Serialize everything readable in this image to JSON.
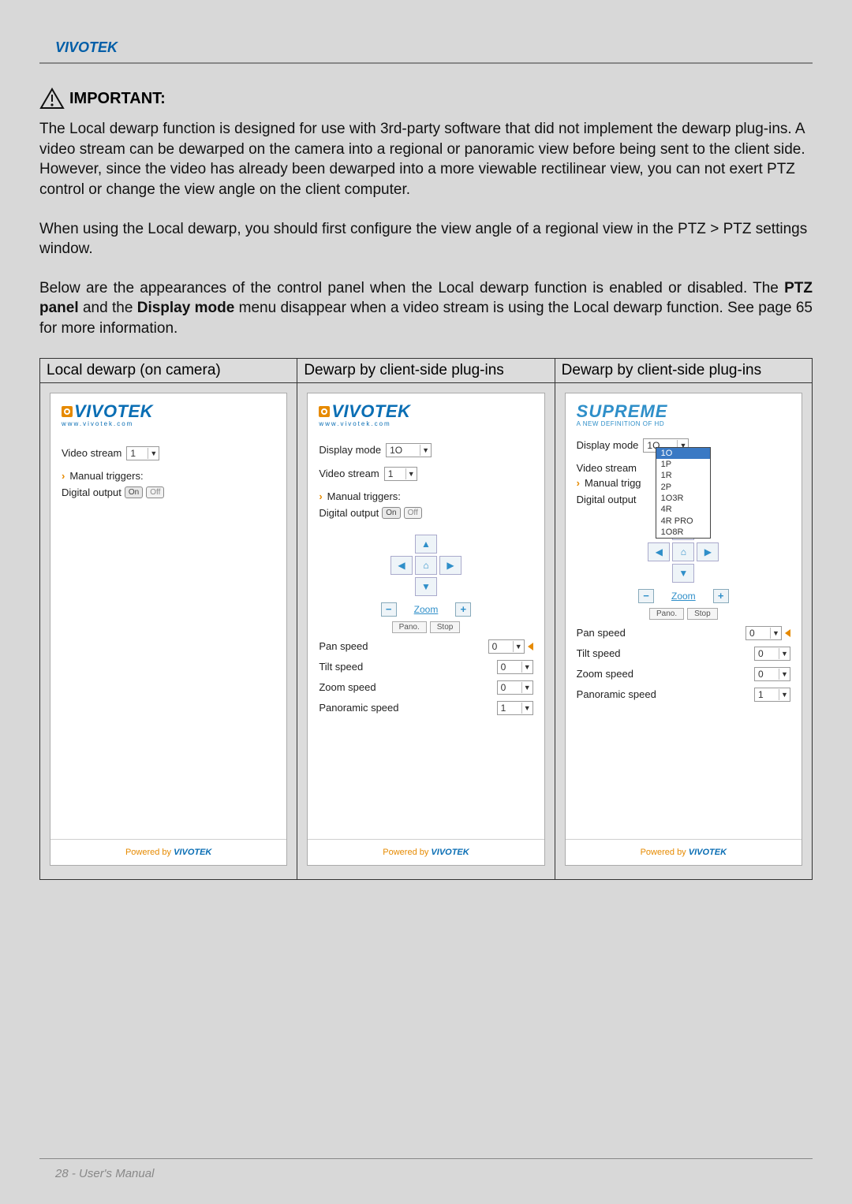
{
  "header": {
    "brand": "VIVOTEK"
  },
  "important": {
    "label": "IMPORTANT:",
    "para1": "The Local dewarp function is designed for use with 3rd-party software that did not implement the dewarp plug-ins. A video stream can be dewarped on the camera into a regional or panoramic view before being sent to the client side. However, since the video has already been dewarped into a more viewable rectilinear view, you can not exert PTZ control or change the view angle on the client computer.",
    "para2": "When using the Local dewarp, you should first configure the view angle of a regional view in the PTZ > PTZ settings window.",
    "para3_before": "Below are the appearances of the control panel when the Local dewarp function is enabled or disabled. The ",
    "para3_bold1": "PTZ panel",
    "para3_mid": " and the ",
    "para3_bold2": "Display mode",
    "para3_after": " menu disappear when a video stream is using the Local dewarp function. See page 65 for more information."
  },
  "table": {
    "headers": [
      "Local dewarp (on camera)",
      "Dewarp by client-side plug-ins",
      "Dewarp by client-side plug-ins"
    ]
  },
  "panel_common": {
    "logo_text": "VIVOTEK",
    "logo_sub": "www.vivotek.com",
    "supreme": "SUPREME",
    "supreme_sub": "A NEW DEFINITION OF HD",
    "video_stream_label": "Video stream",
    "display_mode_label": "Display mode",
    "manual_triggers_label": "Manual triggers:",
    "digital_output_label": "Digital output",
    "on": "On",
    "off": "Off",
    "zoom": "Zoom",
    "pano_btn": "Pano.",
    "stop_btn": "Stop",
    "pan_speed": "Pan speed",
    "tilt_speed": "Tilt speed",
    "zoom_speed": "Zoom speed",
    "panoramic_speed": "Panoramic speed",
    "powered_by": "Powered by ",
    "powered_logo": "VIVOTEK"
  },
  "panel1": {
    "video_stream_value": "1"
  },
  "panel2": {
    "display_mode_value": "1O",
    "video_stream_value": "1",
    "pan_speed_value": "0",
    "tilt_speed_value": "0",
    "zoom_speed_value": "0",
    "panoramic_speed_value": "1"
  },
  "panel3": {
    "display_mode_value": "1O",
    "video_stream_value": "",
    "manual_trig_trunc": "Manual trigg",
    "pan_speed_value": "0",
    "tilt_speed_value": "0",
    "zoom_speed_value": "0",
    "panoramic_speed_value": "1",
    "dropdown_options": [
      "1O",
      "1P",
      "1R",
      "2P",
      "1O3R",
      "4R",
      "4R PRO",
      "1O8R"
    ],
    "dropdown_highlight_index": 0
  },
  "colors": {
    "brand_blue": "#0a6eb4",
    "accent_orange": "#e68a00",
    "supreme_blue": "#2f8fc9",
    "page_bg": "#d8d8d8",
    "dropdown_hl": "#3a79c4"
  },
  "footer": {
    "text": "28 - User's Manual"
  }
}
